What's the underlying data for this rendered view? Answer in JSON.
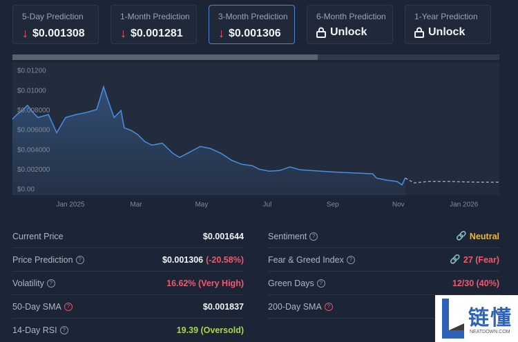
{
  "prediction_cards": [
    {
      "label": "5-Day Prediction",
      "value": "$0.001308"
    },
    {
      "label": "1-Month Prediction",
      "value": "$0.001281"
    },
    {
      "label": "3-Month Prediction",
      "value": "$0.001306"
    },
    {
      "label": "6-Month Prediction",
      "value": "Unlock"
    },
    {
      "label": "1-Year Prediction",
      "value": "Unlock"
    }
  ],
  "chart_data": {
    "type": "line",
    "xlim": [
      -1.77,
      13.08
    ],
    "xticks": [
      {
        "value": 0,
        "label": "Jan 2025"
      },
      {
        "value": 2,
        "label": "Mar"
      },
      {
        "value": 4,
        "label": "May"
      },
      {
        "value": 6,
        "label": "Jul"
      },
      {
        "value": 8,
        "label": "Sep"
      },
      {
        "value": 10,
        "label": "Nov"
      },
      {
        "value": 12,
        "label": "Jan 2026"
      }
    ],
    "ylim": [
      -0.00055,
      0.0129
    ],
    "yticks": [
      {
        "value": 0,
        "label": "$0.00"
      },
      {
        "value": 0.002,
        "label": "$0.002000"
      },
      {
        "value": 0.004,
        "label": "$0.004000"
      },
      {
        "value": 0.006,
        "label": "$0.006000"
      },
      {
        "value": 0.008,
        "label": "$0.008000"
      },
      {
        "value": 0.01,
        "label": "$0.01000"
      },
      {
        "value": 0.012,
        "label": "$0.01200"
      }
    ],
    "series": [
      {
        "color": "#4a8fe0",
        "style": "solid",
        "fill": true,
        "x": [
          -1.77,
          -1.62,
          -1.47,
          -1.31,
          -1.14,
          -0.99,
          -0.67,
          -0.42,
          -0.15,
          0.17,
          0.48,
          0.8,
          1.01,
          1.18,
          1.33,
          1.54,
          1.64,
          1.85,
          2.06,
          2.27,
          2.48,
          2.8,
          3.12,
          3.33,
          3.64,
          3.96,
          4.27,
          4.59,
          4.91,
          5.22,
          5.54,
          5.75,
          6.06,
          6.38,
          6.69,
          7.01,
          7.33,
          7.64,
          7.96,
          8.38,
          8.8,
          9.22,
          9.33,
          9.64,
          9.96,
          10.11,
          10.21
        ],
        "values": [
          0.00715,
          0.00763,
          0.008,
          0.00853,
          0.0078,
          0.0073,
          0.0076,
          0.00576,
          0.0073,
          0.0076,
          0.0078,
          0.0081,
          0.0104,
          0.0087,
          0.0073,
          0.008,
          0.00625,
          0.006,
          0.00555,
          0.00486,
          0.0045,
          0.0047,
          0.00368,
          0.00326,
          0.0038,
          0.00437,
          0.00416,
          0.00368,
          0.00298,
          0.00257,
          0.00243,
          0.00208,
          0.00187,
          0.00194,
          0.00229,
          0.00201,
          0.00194,
          0.00187,
          0.0018,
          0.00173,
          0.00167,
          0.0016,
          0.00118,
          0.00097,
          0.00083,
          0.00049,
          0.00118
        ]
      },
      {
        "color": "#8fa3bd",
        "style": "dashed",
        "fill": false,
        "x": [
          10.21,
          10.48,
          10.91,
          11.54,
          12.38,
          13.08
        ],
        "values": [
          0.00118,
          0.00069,
          0.00083,
          0.00083,
          0.00076,
          0.00076
        ]
      }
    ]
  },
  "stats": {
    "left": [
      {
        "label": "Current Price",
        "value": "$0.001644"
      },
      {
        "label": "Price Prediction",
        "value": "$0.001306",
        "note": "(-20.58%)"
      },
      {
        "label": "Volatility",
        "value": "16.62% (Very High)"
      },
      {
        "label": "50-Day SMA",
        "value": "$0.001837"
      },
      {
        "label": "14-Day RSI",
        "value": "19.39 (Oversold)"
      }
    ],
    "right": [
      {
        "label": "Sentiment",
        "value": "Neutral"
      },
      {
        "label": "Fear & Greed Index",
        "value": "27 (Fear)"
      },
      {
        "label": "Green Days",
        "value": "12/30 (40%)"
      },
      {
        "label": "200-Day SMA"
      }
    ]
  },
  "watermark": {
    "title": "链懂",
    "subtitle": "NEATDOWN.COM"
  }
}
